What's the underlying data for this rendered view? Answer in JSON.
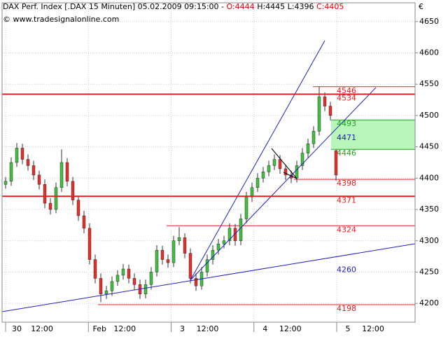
{
  "chart_data": {
    "type": "candlestick",
    "title_parts": [
      "DAX Perf. Index [.DAX  15 Minuten] 05.02.2009 09:15:00 -",
      "O:4444",
      "H:4445 L:4396",
      "C:4405"
    ],
    "source": "© www.tradesignalonline.com",
    "currency": "€",
    "ylim": [
      4170,
      4680
    ],
    "yticks": [
      4200,
      4250,
      4300,
      4350,
      4400,
      4450,
      4500,
      4550,
      4600,
      4650
    ],
    "grid": true,
    "xtick_labels": [
      "30",
      "12:00",
      "Feb",
      "12:00",
      "3",
      "12:00",
      "4",
      "12:00",
      "5",
      "12:00"
    ],
    "up_color": "#40c040",
    "down_color": "#e03030",
    "ohlc": [
      [
        4390,
        4402,
        4383,
        4395
      ],
      [
        4395,
        4433,
        4388,
        4425
      ],
      [
        4425,
        4456,
        4418,
        4448
      ],
      [
        4448,
        4455,
        4422,
        4430
      ],
      [
        4430,
        4438,
        4412,
        4420
      ],
      [
        4420,
        4428,
        4397,
        4405
      ],
      [
        4405,
        4412,
        4382,
        4390
      ],
      [
        4390,
        4398,
        4352,
        4360
      ],
      [
        4360,
        4368,
        4342,
        4350
      ],
      [
        4350,
        4393,
        4344,
        4385
      ],
      [
        4385,
        4446,
        4378,
        4425
      ],
      [
        4425,
        4432,
        4387,
        4395
      ],
      [
        4395,
        4402,
        4357,
        4365
      ],
      [
        4365,
        4372,
        4332,
        4340
      ],
      [
        4340,
        4348,
        4312,
        4320
      ],
      [
        4320,
        4328,
        4262,
        4270
      ],
      [
        4270,
        4278,
        4232,
        4240
      ],
      [
        4240,
        4248,
        4202,
        4215
      ],
      [
        4215,
        4228,
        4207,
        4220
      ],
      [
        4220,
        4243,
        4212,
        4235
      ],
      [
        4235,
        4253,
        4228,
        4245
      ],
      [
        4245,
        4263,
        4238,
        4255
      ],
      [
        4255,
        4262,
        4232,
        4240
      ],
      [
        4240,
        4248,
        4222,
        4230
      ],
      [
        4230,
        4238,
        4207,
        4215
      ],
      [
        4215,
        4238,
        4208,
        4230
      ],
      [
        4230,
        4258,
        4222,
        4250
      ],
      [
        4250,
        4293,
        4243,
        4285
      ],
      [
        4285,
        4292,
        4262,
        4270
      ],
      [
        4270,
        4278,
        4257,
        4265
      ],
      [
        4265,
        4308,
        4258,
        4300
      ],
      [
        4300,
        4322,
        4293,
        4305
      ],
      [
        4305,
        4312,
        4272,
        4280
      ],
      [
        4280,
        4288,
        4232,
        4240
      ],
      [
        4240,
        4248,
        4220,
        4228
      ],
      [
        4228,
        4258,
        4222,
        4250
      ],
      [
        4250,
        4278,
        4243,
        4270
      ],
      [
        4270,
        4293,
        4262,
        4285
      ],
      [
        4285,
        4303,
        4278,
        4295
      ],
      [
        4295,
        4308,
        4288,
        4300
      ],
      [
        4300,
        4328,
        4293,
        4320
      ],
      [
        4320,
        4327,
        4292,
        4300
      ],
      [
        4300,
        4343,
        4293,
        4335
      ],
      [
        4335,
        4378,
        4328,
        4370
      ],
      [
        4370,
        4393,
        4362,
        4385
      ],
      [
        4385,
        4408,
        4378,
        4400
      ],
      [
        4400,
        4418,
        4393,
        4410
      ],
      [
        4410,
        4428,
        4403,
        4420
      ],
      [
        4420,
        4438,
        4413,
        4430
      ],
      [
        4430,
        4437,
        4407,
        4415
      ],
      [
        4415,
        4422,
        4397,
        4405
      ],
      [
        4405,
        4412,
        4392,
        4400
      ],
      [
        4400,
        4428,
        4393,
        4420
      ],
      [
        4420,
        4448,
        4413,
        4440
      ],
      [
        4440,
        4463,
        4433,
        4455
      ],
      [
        4455,
        4483,
        4448,
        4475
      ],
      [
        4475,
        4546,
        4468,
        4530
      ],
      [
        4530,
        4537,
        4507,
        4515
      ],
      [
        4515,
        4522,
        4492,
        4500
      ],
      [
        4444,
        4445,
        4396,
        4405
      ]
    ],
    "levels": [
      {
        "value": 4546,
        "color": "#e02020",
        "style": "minor"
      },
      {
        "value": 4534,
        "color": "#e02020",
        "style": "major"
      },
      {
        "value": 4493,
        "color": "#20a020",
        "style": "zone"
      },
      {
        "value": 4471,
        "color": "#2020c0",
        "style": "label"
      },
      {
        "value": 4446,
        "color": "#20a020",
        "style": "zone"
      },
      {
        "value": 4398,
        "color": "#e02020",
        "style": "minor"
      },
      {
        "value": 4371,
        "color": "#e02020",
        "style": "major"
      },
      {
        "value": 4324,
        "color": "#e02020",
        "style": "minor"
      },
      {
        "value": 4260,
        "color": "#2020c0",
        "style": "label"
      },
      {
        "value": 4198,
        "color": "#e02020",
        "style": "minor"
      }
    ],
    "zone": {
      "from": 4446,
      "to": 4493,
      "color": "#b8f5b8"
    }
  }
}
